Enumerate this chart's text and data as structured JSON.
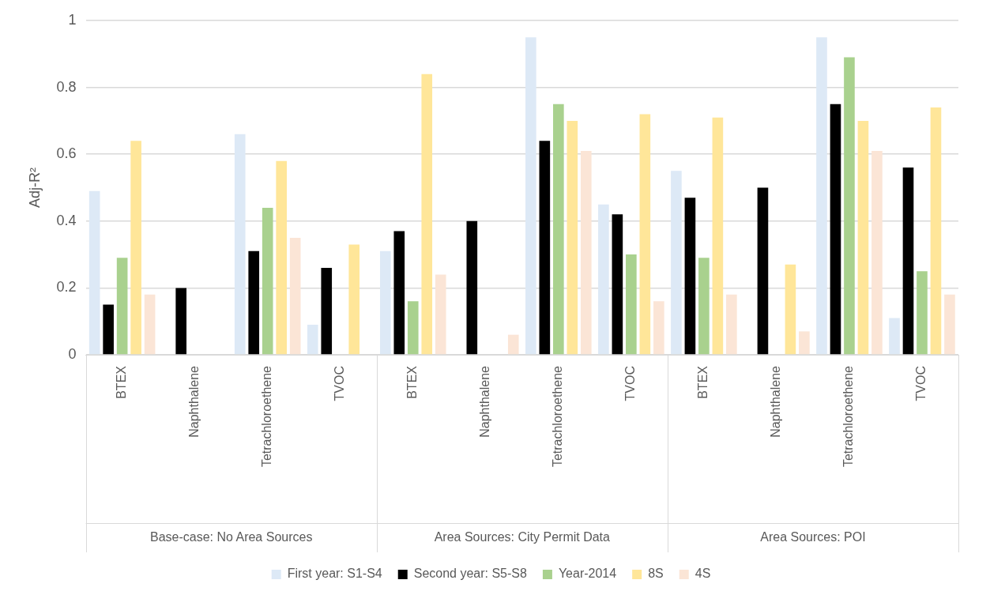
{
  "chart_data": {
    "type": "bar",
    "ylabel": "Adj-R²",
    "categories": [
      "BTEX",
      "Naphthalene",
      "Tetrachloroethene",
      "TVOC",
      "BTEX",
      "Naphthalene",
      "Tetrachloroethene",
      "TVOC",
      "BTEX",
      "Naphthalene",
      "Tetrachloroethene",
      "TVOC"
    ],
    "annotations": [
      "Base-case: No Area Sources",
      "Area Sources: City Permit Data",
      "Area Sources: POI"
    ],
    "series": [
      {
        "name": "First year: S1-S4",
        "color": "#dde9f6",
        "values": [
          0.49,
          null,
          0.66,
          0.09,
          0.31,
          null,
          0.95,
          0.45,
          0.55,
          null,
          0.95,
          0.11
        ]
      },
      {
        "name": "Second year: S5-S8",
        "color": "#000000",
        "values": [
          0.15,
          0.2,
          0.31,
          0.26,
          0.37,
          0.4,
          0.64,
          0.42,
          0.47,
          0.5,
          0.75,
          0.56
        ]
      },
      {
        "name": "Year-2014",
        "color": "#a9d18e",
        "values": [
          0.29,
          null,
          0.44,
          null,
          0.16,
          null,
          0.75,
          0.3,
          0.29,
          null,
          0.89,
          0.25
        ]
      },
      {
        "name": "8S",
        "color": "#ffe699",
        "values": [
          0.64,
          null,
          0.58,
          0.33,
          0.84,
          null,
          0.7,
          0.72,
          0.71,
          0.27,
          0.7,
          0.74
        ]
      },
      {
        "name": "4S",
        "color": "#fbe5d6",
        "values": [
          0.18,
          null,
          0.35,
          null,
          0.24,
          0.06,
          0.61,
          0.16,
          0.18,
          0.07,
          0.61,
          0.18
        ]
      }
    ],
    "ylim": [
      0,
      1
    ],
    "yticks": [
      0,
      0.2,
      0.4,
      0.6,
      0.8,
      1
    ],
    "grid": "y",
    "legend": "bottom"
  }
}
